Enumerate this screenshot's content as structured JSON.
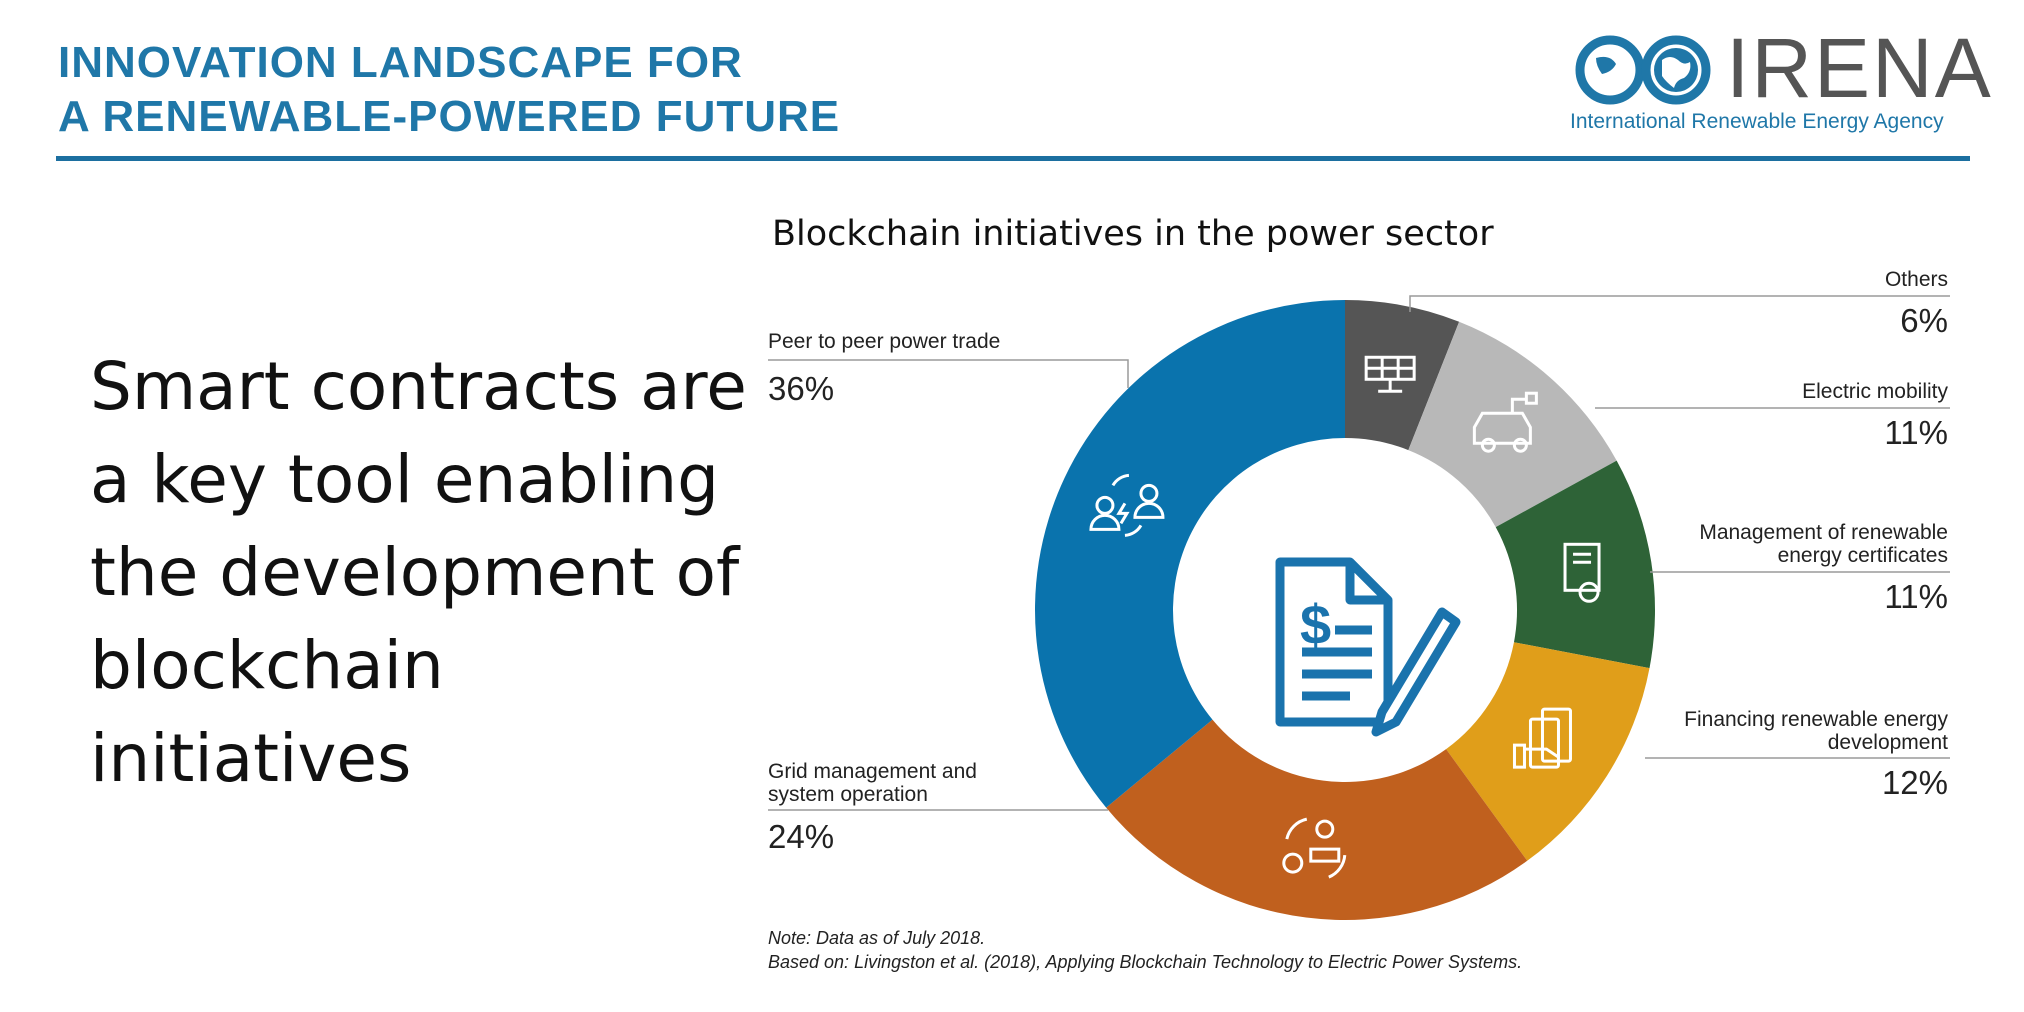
{
  "header": {
    "title_line1": "INNOVATION LANDSCAPE FOR",
    "title_line2": "A RENEWABLE-POWERED FUTURE"
  },
  "logo": {
    "name": "IRENA",
    "subtitle": "International Renewable Energy Agency"
  },
  "headline": "Smart contracts are a key tool enabling the development of blockchain initiatives",
  "colors": {
    "brand_blue": "#1f77a8",
    "others": "#555555",
    "electric_mobility": "#b8b8b8",
    "certificates": "#2e6337",
    "financing": "#e09e1a",
    "grid": "#c0601e",
    "p2p": "#0a73ad"
  },
  "chart_data": {
    "type": "pie",
    "donut": true,
    "title": "Blockchain initiatives in the power sector",
    "slices": [
      {
        "label": "Others",
        "value": 6,
        "display": "6%",
        "color": "#555555",
        "icon": "solar-panel-icon"
      },
      {
        "label": "Electric mobility",
        "value": 11,
        "display": "11%",
        "color": "#b8b8b8",
        "icon": "electric-car-icon"
      },
      {
        "label_lines": [
          "Management of renewable",
          "energy certificates"
        ],
        "label": "Management of renewable energy certificates",
        "value": 11,
        "display": "11%",
        "color": "#2e6337",
        "icon": "certificate-icon"
      },
      {
        "label_lines": [
          "Financing renewable energy",
          "development"
        ],
        "label": "Financing renewable energy development",
        "value": 12,
        "display": "12%",
        "color": "#e09e1a",
        "icon": "money-hand-icon"
      },
      {
        "label_lines": [
          "Grid management and",
          "system operation"
        ],
        "label": "Grid management and system operation",
        "value": 24,
        "display": "24%",
        "color": "#c0601e",
        "icon": "grid-operator-icon"
      },
      {
        "label": "Peer to peer power trade",
        "value": 36,
        "display": "36%",
        "color": "#0a73ad",
        "icon": "peer-trade-icon"
      }
    ],
    "center_icon": "smart-contract-icon"
  },
  "notes": {
    "line1": "Note: Data as of July 2018.",
    "line2": "Based on: Livingston et al. (2018), Applying Blockchain Technology to Electric Power Systems."
  }
}
